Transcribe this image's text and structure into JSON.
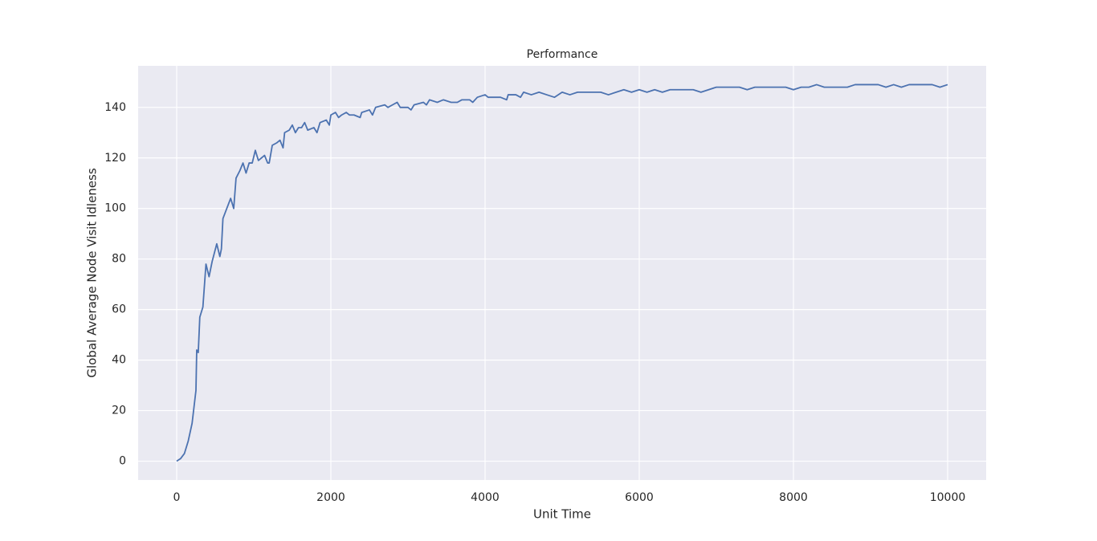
{
  "chart_data": {
    "type": "line",
    "title": "Performance",
    "x_label": "Unit Time",
    "y_label": "Global Average Node Visit Idleness",
    "x": [
      0,
      50,
      100,
      150,
      200,
      250,
      260,
      280,
      300,
      340,
      380,
      420,
      460,
      520,
      560,
      580,
      600,
      650,
      700,
      740,
      770,
      820,
      860,
      900,
      940,
      980,
      1020,
      1060,
      1100,
      1140,
      1180,
      1200,
      1240,
      1300,
      1340,
      1380,
      1400,
      1460,
      1500,
      1540,
      1580,
      1620,
      1660,
      1700,
      1780,
      1820,
      1860,
      1940,
      1980,
      2000,
      2060,
      2100,
      2140,
      2200,
      2240,
      2300,
      2380,
      2400,
      2500,
      2540,
      2580,
      2700,
      2740,
      2800,
      2860,
      2900,
      3000,
      3040,
      3080,
      3200,
      3240,
      3280,
      3380,
      3460,
      3560,
      3640,
      3700,
      3800,
      3840,
      3900,
      4000,
      4040,
      4200,
      4280,
      4300,
      4400,
      4460,
      4500,
      4600,
      4700,
      4800,
      4900,
      5000,
      5100,
      5200,
      5300,
      5400,
      5500,
      5600,
      5700,
      5800,
      5900,
      6000,
      6100,
      6200,
      6300,
      6400,
      6500,
      6600,
      6700,
      6800,
      6900,
      7000,
      7100,
      7200,
      7300,
      7400,
      7500,
      7600,
      7700,
      7800,
      7900,
      8000,
      8100,
      8200,
      8300,
      8400,
      8500,
      8600,
      8700,
      8800,
      8900,
      9000,
      9100,
      9200,
      9300,
      9400,
      9500,
      9600,
      9700,
      9800,
      9900,
      10000
    ],
    "values": [
      0,
      1,
      3,
      8,
      15,
      28,
      44,
      43,
      57,
      61,
      78,
      73,
      79,
      86,
      81,
      84,
      96,
      100,
      104,
      100,
      112,
      115,
      118,
      114,
      118,
      118,
      123,
      119,
      120,
      121,
      118,
      118,
      125,
      126,
      127,
      124,
      130,
      131,
      133,
      130,
      132,
      132,
      134,
      131,
      132,
      130,
      134,
      135,
      133,
      137,
      138,
      136,
      137,
      138,
      137,
      137,
      136,
      138,
      139,
      137,
      140,
      141,
      140,
      141,
      142,
      140,
      140,
      139,
      141,
      142,
      141,
      143,
      142,
      143,
      142,
      142,
      143,
      143,
      142,
      144,
      145,
      144,
      144,
      143,
      145,
      145,
      144,
      146,
      145,
      146,
      145,
      144,
      146,
      145,
      146,
      146,
      146,
      146,
      145,
      146,
      147,
      146,
      147,
      146,
      147,
      146,
      147,
      147,
      147,
      147,
      146,
      147,
      148,
      148,
      148,
      148,
      147,
      148,
      148,
      148,
      148,
      148,
      147,
      148,
      148,
      149,
      148,
      148,
      148,
      148,
      149,
      149,
      149,
      149,
      148,
      149,
      148,
      149,
      149,
      149,
      149,
      148,
      149
    ],
    "color": "#4c72b0",
    "xlim": [
      -500,
      10500
    ],
    "xticks": [
      0,
      2000,
      4000,
      6000,
      8000,
      10000
    ],
    "ylim": [
      -7.45,
      156.45
    ],
    "yticks": [
      0,
      20,
      40,
      60,
      80,
      100,
      120,
      140
    ],
    "grid": true
  }
}
